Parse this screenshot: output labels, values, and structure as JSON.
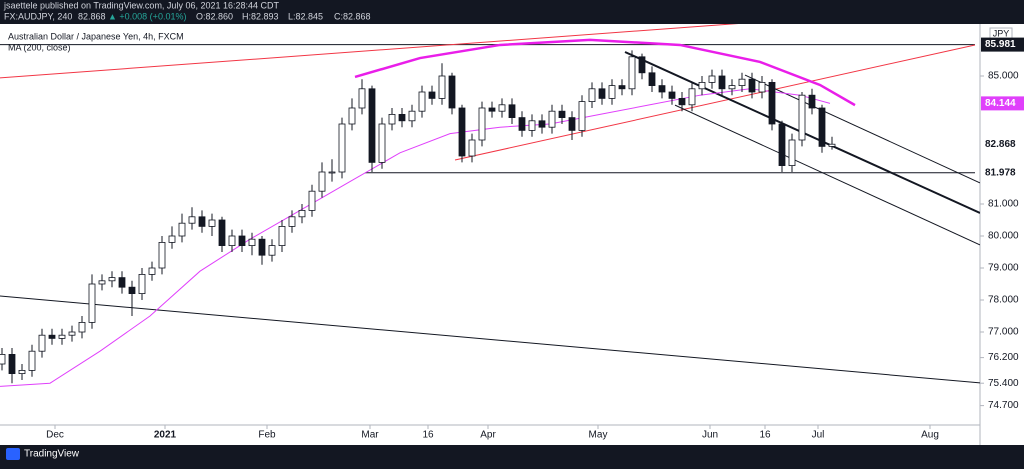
{
  "header": {
    "published": "jsaettele published on TradingView.com, July 06, 2021 16:28:44 CDT",
    "symbol": "FX:AUDJPY, 240",
    "last": "82.868",
    "change": "▲ +0.008 (+0.01%)",
    "ohlc": [
      "O:82.860",
      "H:82.893",
      "L:82.845",
      "C:82.868"
    ]
  },
  "footer": {
    "brand": "TradingView"
  },
  "chart_data": {
    "type": "candlestick",
    "currency": "JPY",
    "grid": false,
    "xlim": [
      0,
      196
    ],
    "ylim": [
      74.094,
      86.906
    ],
    "xticks": [
      {
        "value": 11,
        "label": "Dec"
      },
      {
        "value": 33,
        "label": "2021"
      },
      {
        "value": 53.4,
        "label": "Feb"
      },
      {
        "value": 74,
        "label": "Mar"
      },
      {
        "value": 85.6,
        "label": "16"
      },
      {
        "value": 97.6,
        "label": "Apr"
      },
      {
        "value": 119.6,
        "label": "May"
      },
      {
        "value": 142,
        "label": "Jun"
      },
      {
        "value": 153,
        "label": "16"
      },
      {
        "value": 163.6,
        "label": "Jul"
      },
      {
        "value": 186,
        "label": "Aug"
      }
    ],
    "yticks": [
      {
        "value": 85,
        "label": "85.000"
      },
      {
        "value": 81,
        "label": "81.000"
      },
      {
        "value": 80,
        "label": "80.000"
      },
      {
        "value": 79,
        "label": "79.000"
      },
      {
        "value": 78,
        "label": "78.000"
      },
      {
        "value": 77,
        "label": "77.000"
      },
      {
        "value": 76.2,
        "label": "76.200"
      },
      {
        "value": 75.4,
        "label": "75.400"
      },
      {
        "value": 74.7,
        "label": "74.700"
      }
    ],
    "series": [
      {
        "name": "Australian Dollar / Japanese Yen, 4h, FXCM",
        "type": "candlestick",
        "up_color": "#ffffff",
        "down_color": "#131722",
        "x": [
          0,
          2,
          4,
          6,
          8,
          10,
          12,
          14,
          16,
          18,
          20,
          22,
          24,
          26,
          28,
          30,
          32,
          34,
          36,
          38,
          40,
          42,
          44,
          46,
          48,
          50,
          52,
          54,
          56,
          58,
          60,
          62,
          64,
          66,
          68,
          70,
          72,
          74,
          76,
          78,
          80,
          82,
          84,
          86,
          88,
          90,
          92,
          94,
          96,
          98,
          100,
          102,
          104,
          106,
          108,
          110,
          112,
          114,
          116,
          118,
          120,
          122,
          124,
          126,
          128,
          130,
          132,
          134,
          136,
          138,
          140,
          142,
          144,
          146,
          148,
          150,
          152,
          154,
          156,
          158,
          160,
          162,
          164,
          166
        ],
        "open": [
          76.0,
          76.3,
          75.7,
          75.8,
          76.4,
          76.9,
          76.8,
          76.9,
          77.0,
          77.3,
          78.5,
          78.6,
          78.7,
          78.4,
          78.2,
          78.8,
          79.0,
          79.8,
          80.0,
          80.4,
          80.6,
          80.3,
          80.5,
          79.7,
          80.0,
          79.7,
          79.9,
          79.4,
          79.7,
          80.3,
          80.6,
          80.8,
          81.4,
          82.0,
          82.0,
          83.5,
          84.0,
          84.6,
          82.3,
          83.5,
          83.8,
          83.6,
          83.9,
          84.5,
          84.3,
          85.0,
          84.0,
          82.5,
          83.0,
          84.0,
          83.9,
          84.1,
          83.7,
          83.3,
          83.6,
          83.4,
          83.9,
          83.7,
          83.3,
          84.2,
          84.6,
          84.3,
          84.7,
          84.6,
          85.6,
          85.1,
          84.7,
          84.5,
          84.3,
          84.1,
          84.6,
          84.8,
          85.0,
          84.6,
          84.7,
          84.9,
          84.5,
          84.8,
          83.5,
          82.2,
          83.0,
          84.4,
          84.0,
          82.8
        ],
        "high": [
          76.5,
          76.5,
          76.0,
          76.6,
          77.1,
          77.1,
          77.1,
          77.2,
          77.5,
          78.8,
          78.8,
          78.9,
          78.9,
          78.6,
          79.0,
          79.2,
          80.0,
          80.3,
          80.7,
          80.9,
          80.8,
          80.7,
          80.6,
          80.2,
          80.2,
          80.1,
          80.0,
          79.9,
          80.5,
          80.8,
          81.0,
          81.6,
          82.3,
          82.4,
          83.7,
          84.3,
          84.9,
          84.7,
          83.7,
          84.0,
          84.0,
          84.1,
          84.7,
          84.7,
          85.4,
          85.1,
          84.1,
          83.2,
          84.2,
          84.2,
          84.3,
          84.3,
          83.9,
          83.8,
          83.8,
          84.1,
          84.1,
          83.9,
          84.4,
          84.8,
          84.8,
          84.9,
          84.9,
          85.8,
          85.7,
          85.3,
          84.9,
          84.7,
          84.5,
          84.8,
          85.0,
          85.2,
          85.2,
          84.9,
          85.1,
          85.1,
          85.0,
          84.9,
          83.6,
          83.2,
          84.5,
          84.6,
          84.1,
          83.1
        ],
        "low": [
          75.8,
          75.4,
          75.5,
          75.6,
          76.2,
          76.6,
          76.6,
          76.7,
          76.8,
          77.1,
          78.3,
          78.4,
          78.2,
          77.5,
          78.0,
          78.6,
          78.8,
          79.6,
          79.8,
          80.2,
          80.1,
          80.0,
          79.5,
          79.5,
          79.5,
          79.4,
          79.1,
          79.2,
          79.5,
          80.1,
          80.4,
          80.6,
          81.2,
          81.7,
          81.8,
          83.3,
          83.8,
          82.0,
          82.1,
          83.3,
          83.4,
          83.4,
          83.7,
          84.1,
          84.1,
          83.8,
          82.3,
          82.3,
          82.8,
          83.7,
          83.7,
          83.5,
          83.1,
          83.1,
          83.2,
          83.2,
          83.5,
          83.0,
          83.1,
          84.0,
          84.1,
          84.1,
          84.4,
          84.4,
          84.9,
          84.5,
          84.3,
          84.1,
          83.9,
          83.9,
          84.4,
          84.6,
          84.4,
          84.4,
          84.5,
          84.3,
          84.3,
          83.3,
          82.0,
          82.0,
          82.8,
          83.8,
          82.6,
          82.7
        ],
        "close": [
          76.3,
          75.7,
          75.8,
          76.4,
          76.9,
          76.8,
          76.9,
          77.0,
          77.3,
          78.5,
          78.6,
          78.7,
          78.4,
          78.2,
          78.8,
          79.0,
          79.8,
          80.0,
          80.4,
          80.6,
          80.3,
          80.5,
          79.7,
          80.0,
          79.7,
          79.9,
          79.4,
          79.7,
          80.3,
          80.6,
          80.8,
          81.4,
          82.0,
          82.0,
          83.5,
          84.0,
          84.6,
          82.3,
          83.5,
          83.8,
          83.6,
          83.9,
          84.5,
          84.3,
          85.0,
          84.0,
          82.5,
          83.0,
          84.0,
          83.9,
          84.1,
          83.7,
          83.3,
          83.6,
          83.4,
          83.9,
          83.7,
          83.3,
          84.2,
          84.6,
          84.3,
          84.7,
          84.6,
          85.6,
          85.1,
          84.7,
          84.5,
          84.3,
          84.1,
          84.6,
          84.8,
          85.0,
          84.6,
          84.7,
          84.9,
          84.5,
          84.8,
          83.5,
          82.2,
          83.0,
          84.4,
          84.0,
          82.8,
          82.868
        ]
      },
      {
        "name": "MA (200, close)",
        "type": "line",
        "color": "#e040fb",
        "x": [
          0,
          10,
          20,
          30,
          40,
          50,
          60,
          70,
          80,
          90,
          100,
          110,
          120,
          130,
          140,
          150,
          160,
          166
        ],
        "values": [
          75.3,
          75.4,
          76.4,
          77.5,
          78.9,
          79.9,
          80.8,
          81.7,
          82.6,
          83.2,
          83.4,
          83.5,
          83.8,
          84.1,
          84.4,
          84.6,
          84.4,
          84.144
        ]
      }
    ],
    "drawings": [
      {
        "color": "#131722",
        "width": 1,
        "x": [
          0,
          195
        ],
        "y": [
          85.981,
          85.981
        ]
      },
      {
        "color": "#131722",
        "width": 1,
        "x": [
          73,
          195
        ],
        "y": [
          81.978,
          81.978
        ]
      },
      {
        "color": "#f23645",
        "width": 1,
        "x": [
          0,
          152
        ],
        "y": [
          84.94,
          86.69
        ]
      },
      {
        "color": "#f23645",
        "width": 1,
        "x": [
          91,
          195
        ],
        "y": [
          82.375,
          85.97
        ]
      },
      {
        "color": "#e91ee9",
        "width": 2.5,
        "x": [
          71,
          84,
          100,
          118,
          136,
          152,
          164,
          171
        ],
        "y": [
          84.97,
          85.56,
          85.97,
          86.13,
          85.97,
          85.44,
          84.72,
          84.09
        ]
      },
      {
        "color": "#131722",
        "width": 2,
        "x": [
          125,
          196
        ],
        "y": [
          85.75,
          80.72
        ]
      },
      {
        "color": "#131722",
        "width": 1,
        "x": [
          149,
          196
        ],
        "y": [
          85.03,
          81.66
        ]
      },
      {
        "color": "#131722",
        "width": 1,
        "x": [
          135,
          196
        ],
        "y": [
          84.09,
          79.72
        ]
      },
      {
        "color": "#131722",
        "width": 1,
        "x": [
          0,
          196
        ],
        "y": [
          78.125,
          75.41
        ]
      }
    ]
  }
}
